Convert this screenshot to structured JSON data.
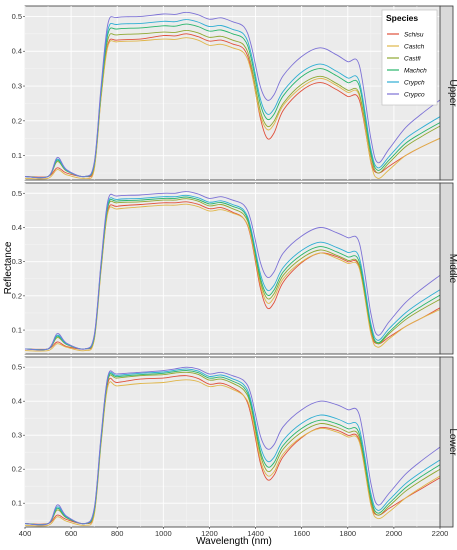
{
  "chart_data": {
    "type": "line",
    "xlabel": "Wavelength (nm)",
    "ylabel": "Reflectance",
    "xlim": [
      400,
      2200
    ],
    "ylim": [
      0.03,
      0.53
    ],
    "x_ticks": [
      400,
      600,
      800,
      1000,
      1200,
      1400,
      1600,
      1800,
      2000,
      2200
    ],
    "y_ticks": [
      0.1,
      0.2,
      0.3,
      0.4,
      0.5
    ],
    "grid": true,
    "legend": {
      "title": "Species",
      "placement": "top-right",
      "panel": "Upper",
      "entries": [
        "Schisu",
        "Castch",
        "Castfi",
        "Machch",
        "Crypch",
        "Crypco"
      ]
    },
    "series_colors": {
      "Schisu": "#e04f3a",
      "Castch": "#e0b64a",
      "Castfi": "#8fa832",
      "Machch": "#27b56b",
      "Crypch": "#2eaed3",
      "Crypco": "#7d72d6"
    },
    "wavelength_x": [
      400,
      500,
      540,
      580,
      660,
      700,
      730,
      760,
      800,
      900,
      1000,
      1050,
      1100,
      1150,
      1200,
      1250,
      1300,
      1350,
      1380,
      1420,
      1450,
      1480,
      1520,
      1600,
      1680,
      1750,
      1800,
      1850,
      1900,
      1930,
      1980,
      2050,
      2120,
      2200
    ],
    "facets": [
      {
        "label": "Upper",
        "reference_series": "Crypco",
        "reference_values": [
          0.04,
          0.04,
          0.095,
          0.06,
          0.04,
          0.08,
          0.3,
          0.48,
          0.497,
          0.5,
          0.507,
          0.506,
          0.512,
          0.505,
          0.492,
          0.496,
          0.485,
          0.47,
          0.42,
          0.3,
          0.26,
          0.275,
          0.33,
          0.385,
          0.41,
          0.39,
          0.37,
          0.36,
          0.15,
          0.08,
          0.12,
          0.18,
          0.22,
          0.26
        ],
        "series_offsets": {
          "Schisu": [
            0,
            0,
            -0.03,
            -0.01,
            0,
            -0.015,
            -0.03,
            -0.06,
            -0.065,
            -0.065,
            -0.062,
            -0.062,
            -0.062,
            -0.063,
            -0.063,
            -0.064,
            -0.064,
            -0.064,
            -0.068,
            -0.09,
            -0.11,
            -0.11,
            -0.1,
            -0.098,
            -0.1,
            -0.1,
            -0.1,
            -0.1,
            -0.065,
            -0.03,
            -0.05,
            -0.08,
            -0.095,
            -0.11
          ],
          "Castch": [
            -0.005,
            -0.005,
            -0.035,
            -0.015,
            -0.005,
            -0.02,
            -0.035,
            -0.065,
            -0.07,
            -0.07,
            -0.072,
            -0.072,
            -0.073,
            -0.073,
            -0.075,
            -0.076,
            -0.075,
            -0.075,
            -0.075,
            -0.082,
            -0.085,
            -0.085,
            -0.086,
            -0.088,
            -0.088,
            -0.088,
            -0.088,
            -0.088,
            -0.07,
            -0.045,
            -0.06,
            -0.08,
            -0.095,
            -0.11
          ],
          "Castfi": [
            0,
            0,
            -0.012,
            -0.004,
            0,
            -0.008,
            -0.02,
            -0.045,
            -0.05,
            -0.05,
            -0.052,
            -0.052,
            -0.052,
            -0.052,
            -0.052,
            -0.053,
            -0.053,
            -0.053,
            -0.055,
            -0.07,
            -0.075,
            -0.076,
            -0.08,
            -0.08,
            -0.082,
            -0.082,
            -0.082,
            -0.082,
            -0.05,
            -0.03,
            -0.04,
            -0.055,
            -0.065,
            -0.075
          ],
          "Machch": [
            0,
            0,
            -0.008,
            -0.003,
            0,
            -0.006,
            -0.015,
            -0.03,
            -0.033,
            -0.033,
            -0.034,
            -0.034,
            -0.034,
            -0.034,
            -0.034,
            -0.035,
            -0.035,
            -0.035,
            -0.037,
            -0.05,
            -0.055,
            -0.056,
            -0.058,
            -0.058,
            -0.06,
            -0.06,
            -0.06,
            -0.06,
            -0.04,
            -0.022,
            -0.032,
            -0.045,
            -0.055,
            -0.065
          ],
          "Crypch": [
            0,
            0,
            -0.005,
            -0.002,
            0,
            -0.004,
            -0.01,
            -0.018,
            -0.02,
            -0.02,
            -0.021,
            -0.021,
            -0.021,
            -0.021,
            -0.021,
            -0.022,
            -0.022,
            -0.022,
            -0.024,
            -0.035,
            -0.04,
            -0.041,
            -0.045,
            -0.045,
            -0.047,
            -0.047,
            -0.047,
            -0.047,
            -0.03,
            -0.015,
            -0.022,
            -0.032,
            -0.04,
            -0.048
          ],
          "Crypco": [
            0,
            0,
            0,
            0,
            0,
            0,
            0,
            0,
            0,
            0,
            0,
            0,
            0,
            0,
            0,
            0,
            0,
            0,
            0,
            0,
            0,
            0,
            0,
            0,
            0,
            0,
            0,
            0,
            0,
            0,
            0,
            0,
            0,
            0
          ]
        }
      },
      {
        "label": "Middle",
        "reference_series": "Crypco",
        "reference_values": [
          0.045,
          0.045,
          0.09,
          0.062,
          0.045,
          0.085,
          0.3,
          0.48,
          0.492,
          0.495,
          0.5,
          0.5,
          0.505,
          0.498,
          0.485,
          0.49,
          0.48,
          0.465,
          0.42,
          0.3,
          0.255,
          0.27,
          0.325,
          0.375,
          0.4,
          0.385,
          0.37,
          0.355,
          0.15,
          0.085,
          0.125,
          0.18,
          0.22,
          0.26
        ],
        "series_offsets": {
          "Schisu": [
            0,
            0,
            -0.025,
            -0.01,
            0,
            -0.012,
            -0.02,
            -0.03,
            -0.03,
            -0.028,
            -0.028,
            -0.028,
            -0.03,
            -0.03,
            -0.03,
            -0.032,
            -0.035,
            -0.04,
            -0.05,
            -0.075,
            -0.09,
            -0.09,
            -0.085,
            -0.078,
            -0.075,
            -0.07,
            -0.07,
            -0.07,
            -0.055,
            -0.025,
            -0.045,
            -0.07,
            -0.085,
            -0.095
          ],
          "Castch": [
            -0.005,
            -0.005,
            -0.03,
            -0.012,
            -0.005,
            -0.015,
            -0.025,
            -0.035,
            -0.038,
            -0.035,
            -0.035,
            -0.035,
            -0.037,
            -0.037,
            -0.037,
            -0.038,
            -0.038,
            -0.04,
            -0.045,
            -0.065,
            -0.075,
            -0.075,
            -0.075,
            -0.075,
            -0.075,
            -0.075,
            -0.075,
            -0.075,
            -0.06,
            -0.035,
            -0.05,
            -0.07,
            -0.085,
            -0.1
          ],
          "Castfi": [
            0,
            0,
            -0.012,
            -0.004,
            0,
            -0.008,
            -0.015,
            -0.02,
            -0.02,
            -0.02,
            -0.02,
            -0.02,
            -0.021,
            -0.021,
            -0.022,
            -0.023,
            -0.025,
            -0.028,
            -0.035,
            -0.055,
            -0.062,
            -0.064,
            -0.065,
            -0.065,
            -0.066,
            -0.066,
            -0.066,
            -0.066,
            -0.045,
            -0.025,
            -0.035,
            -0.05,
            -0.06,
            -0.07
          ],
          "Machch": [
            0,
            0,
            -0.008,
            -0.003,
            0,
            -0.006,
            -0.01,
            -0.015,
            -0.015,
            -0.015,
            -0.015,
            -0.015,
            -0.016,
            -0.016,
            -0.016,
            -0.017,
            -0.018,
            -0.02,
            -0.03,
            -0.045,
            -0.052,
            -0.053,
            -0.055,
            -0.055,
            -0.056,
            -0.056,
            -0.056,
            -0.056,
            -0.04,
            -0.022,
            -0.03,
            -0.042,
            -0.05,
            -0.058
          ],
          "Crypch": [
            0,
            0,
            -0.005,
            -0.002,
            0,
            -0.004,
            -0.006,
            -0.01,
            -0.01,
            -0.01,
            -0.01,
            -0.01,
            -0.011,
            -0.011,
            -0.011,
            -0.012,
            -0.013,
            -0.015,
            -0.022,
            -0.033,
            -0.038,
            -0.039,
            -0.042,
            -0.042,
            -0.043,
            -0.043,
            -0.043,
            -0.043,
            -0.03,
            -0.015,
            -0.02,
            -0.03,
            -0.036,
            -0.042
          ],
          "Crypco": [
            0,
            0,
            0,
            0,
            0,
            0,
            0,
            0,
            0,
            0,
            0,
            0,
            0,
            0,
            0,
            0,
            0,
            0,
            0,
            0,
            0,
            0,
            0,
            0,
            0,
            0,
            0,
            0,
            0,
            0,
            0,
            0,
            0,
            0
          ]
        }
      },
      {
        "label": "Lower",
        "reference_series": "Crypco",
        "reference_values": [
          0.04,
          0.04,
          0.095,
          0.062,
          0.04,
          0.085,
          0.3,
          0.475,
          0.48,
          0.485,
          0.49,
          0.495,
          0.5,
          0.495,
          0.48,
          0.485,
          0.475,
          0.46,
          0.42,
          0.3,
          0.26,
          0.272,
          0.325,
          0.375,
          0.4,
          0.39,
          0.375,
          0.36,
          0.16,
          0.095,
          0.13,
          0.185,
          0.225,
          0.265
        ],
        "series_offsets": {
          "Schisu": [
            0,
            0,
            -0.03,
            -0.01,
            0,
            -0.015,
            -0.02,
            -0.02,
            -0.025,
            -0.02,
            -0.022,
            -0.022,
            -0.025,
            -0.028,
            -0.03,
            -0.032,
            -0.035,
            -0.045,
            -0.06,
            -0.08,
            -0.09,
            -0.09,
            -0.088,
            -0.082,
            -0.078,
            -0.075,
            -0.075,
            -0.075,
            -0.06,
            -0.03,
            -0.045,
            -0.07,
            -0.082,
            -0.09
          ],
          "Castch": [
            -0.005,
            -0.005,
            -0.035,
            -0.015,
            -0.005,
            -0.02,
            -0.025,
            -0.03,
            -0.035,
            -0.033,
            -0.035,
            -0.035,
            -0.037,
            -0.037,
            -0.037,
            -0.038,
            -0.04,
            -0.045,
            -0.05,
            -0.07,
            -0.078,
            -0.08,
            -0.08,
            -0.08,
            -0.08,
            -0.08,
            -0.08,
            -0.08,
            -0.065,
            -0.04,
            -0.055,
            -0.07,
            -0.078,
            -0.085
          ],
          "Castfi": [
            0,
            0,
            -0.015,
            -0.005,
            0,
            -0.01,
            -0.015,
            -0.012,
            -0.012,
            -0.01,
            -0.012,
            -0.012,
            -0.015,
            -0.016,
            -0.018,
            -0.02,
            -0.022,
            -0.028,
            -0.035,
            -0.055,
            -0.065,
            -0.065,
            -0.066,
            -0.066,
            -0.066,
            -0.066,
            -0.066,
            -0.066,
            -0.05,
            -0.03,
            -0.038,
            -0.05,
            -0.058,
            -0.065
          ],
          "Machch": [
            0,
            0,
            -0.01,
            -0.004,
            0,
            -0.007,
            -0.01,
            -0.008,
            -0.008,
            -0.007,
            -0.008,
            -0.008,
            -0.01,
            -0.011,
            -0.012,
            -0.014,
            -0.016,
            -0.02,
            -0.028,
            -0.045,
            -0.052,
            -0.053,
            -0.055,
            -0.055,
            -0.056,
            -0.056,
            -0.056,
            -0.056,
            -0.042,
            -0.024,
            -0.03,
            -0.04,
            -0.046,
            -0.052
          ],
          "Crypch": [
            0,
            0,
            -0.006,
            -0.002,
            0,
            -0.004,
            -0.006,
            -0.004,
            -0.004,
            -0.003,
            -0.004,
            -0.004,
            -0.005,
            -0.006,
            -0.007,
            -0.008,
            -0.009,
            -0.012,
            -0.018,
            -0.03,
            -0.036,
            -0.037,
            -0.04,
            -0.04,
            -0.041,
            -0.041,
            -0.041,
            -0.041,
            -0.03,
            -0.016,
            -0.02,
            -0.028,
            -0.033,
            -0.038
          ],
          "Crypco": [
            0,
            0,
            0,
            0,
            0,
            0,
            0,
            0,
            0,
            0,
            0,
            0,
            0,
            0,
            0,
            0,
            0,
            0,
            0,
            0,
            0,
            0,
            0,
            0,
            0,
            0,
            0,
            0,
            0,
            0,
            0,
            0,
            0,
            0
          ]
        }
      }
    ]
  }
}
